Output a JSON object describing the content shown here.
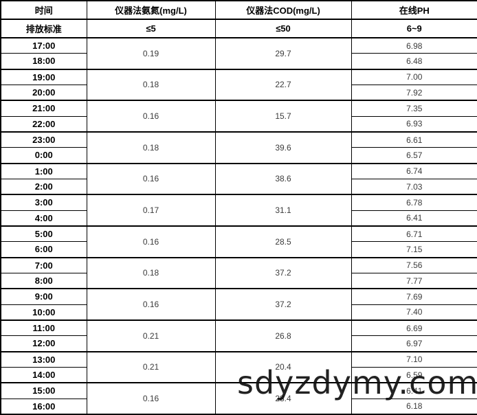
{
  "table": {
    "headers": {
      "time": "时间",
      "nh3": "仪器法氨氮(mg/L)",
      "cod": "仪器法COD(mg/L)",
      "ph": "在线PH"
    },
    "standards": {
      "label": "排放标准",
      "nh3": "≤5",
      "cod": "≤50",
      "ph": "6~9"
    },
    "rows": [
      {
        "time": "17:00",
        "ph": "6.98"
      },
      {
        "time": "18:00",
        "ph": "6.48"
      },
      {
        "time": "19:00",
        "ph": "7.00"
      },
      {
        "time": "20:00",
        "ph": "7.92"
      },
      {
        "time": "21:00",
        "ph": "7.35"
      },
      {
        "time": "22:00",
        "ph": "6.93"
      },
      {
        "time": "23:00",
        "ph": "6.61"
      },
      {
        "time": "0:00",
        "ph": "6.57"
      },
      {
        "time": "1:00",
        "ph": "6.74"
      },
      {
        "time": "2:00",
        "ph": "7.03"
      },
      {
        "time": "3:00",
        "ph": "6.78"
      },
      {
        "time": "4:00",
        "ph": "6.41"
      },
      {
        "time": "5:00",
        "ph": "6.71"
      },
      {
        "time": "6:00",
        "ph": "7.15"
      },
      {
        "time": "7:00",
        "ph": "7.56"
      },
      {
        "time": "8:00",
        "ph": "7.77"
      },
      {
        "time": "9:00",
        "ph": "7.69"
      },
      {
        "time": "10:00",
        "ph": "7.40"
      },
      {
        "time": "11:00",
        "ph": "6.69"
      },
      {
        "time": "12:00",
        "ph": "6.97"
      },
      {
        "time": "13:00",
        "ph": "7.10"
      },
      {
        "time": "14:00",
        "ph": "6.59"
      },
      {
        "time": "15:00",
        "ph": "6.41"
      },
      {
        "time": "16:00",
        "ph": "6.18"
      }
    ],
    "groups": [
      {
        "nh3": "0.19",
        "cod": "29.7"
      },
      {
        "nh3": "0.18",
        "cod": "22.7"
      },
      {
        "nh3": "0.16",
        "cod": "15.7"
      },
      {
        "nh3": "0.18",
        "cod": "39.6"
      },
      {
        "nh3": "0.16",
        "cod": "38.6"
      },
      {
        "nh3": "0.17",
        "cod": "31.1"
      },
      {
        "nh3": "0.16",
        "cod": "28.5"
      },
      {
        "nh3": "0.18",
        "cod": "37.2"
      },
      {
        "nh3": "0.16",
        "cod": "37.2"
      },
      {
        "nh3": "0.21",
        "cod": "26.8"
      },
      {
        "nh3": "0.21",
        "cod": "20.4"
      },
      {
        "nh3": "0.16",
        "cod": "28.4"
      }
    ]
  },
  "watermark": {
    "text": "sdyzdymy.com"
  },
  "colors": {
    "border": "#000000",
    "header_text": "#000000",
    "value_text": "#3b3b3b",
    "background": "#ffffff",
    "watermark": "#101010"
  }
}
